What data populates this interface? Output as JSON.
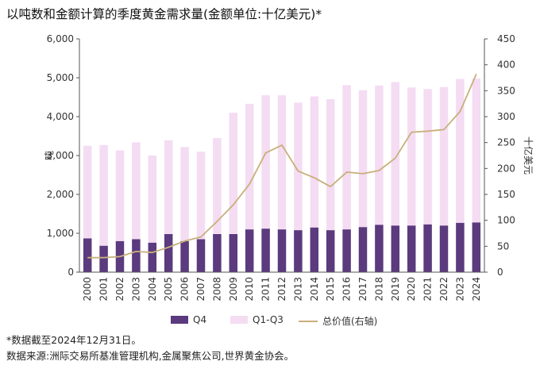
{
  "title": "以吨数和金额计算的季度黄金需求量(金额单位:十亿美元)*",
  "footnote": "*数据截至2024年12月31日。",
  "source": "数据来源:洲际交易所基准管理机构,金属聚焦公司,世界黄金协会。",
  "colors": {
    "q4": "#5b3a7e",
    "q1q3": "#f4dcf3",
    "total": "#c8b07a"
  },
  "chart_data": {
    "type": "bar",
    "stacked": true,
    "categories": [
      "2000",
      "2001",
      "2002",
      "2003",
      "2004",
      "2005",
      "2006",
      "2007",
      "2008",
      "2009",
      "2010",
      "2011",
      "2012",
      "2013",
      "2014",
      "2015",
      "2016",
      "2017",
      "2018",
      "2019",
      "2020",
      "2021",
      "2022",
      "2023",
      "2024"
    ],
    "ylabel": "吨",
    "y2label": "十亿美元",
    "ylim": [
      0,
      6000
    ],
    "y2lim": [
      0,
      450
    ],
    "yticks": [
      "0",
      "1,000",
      "2,000",
      "3,000",
      "4,000",
      "5,000",
      "6,000"
    ],
    "y2ticks": [
      "0",
      "50",
      "100",
      "150",
      "200",
      "250",
      "300",
      "350",
      "400",
      "450"
    ],
    "series": [
      {
        "name": "Q4",
        "values": [
          870,
          680,
          800,
          850,
          760,
          980,
          800,
          850,
          980,
          980,
          1100,
          1120,
          1100,
          1080,
          1150,
          1080,
          1100,
          1160,
          1220,
          1200,
          1200,
          1230,
          1200,
          1270,
          1280
        ]
      },
      {
        "name": "Q1-Q3",
        "values": [
          2380,
          2590,
          2330,
          2490,
          2240,
          2410,
          2420,
          2250,
          2470,
          3120,
          3230,
          3430,
          3450,
          3280,
          3370,
          3370,
          3710,
          3520,
          3580,
          3690,
          3550,
          3480,
          3560,
          3700,
          3700
        ]
      },
      {
        "name": "总价值(右轴)",
        "axis": "right",
        "values": [
          28,
          28,
          30,
          40,
          38,
          48,
          60,
          68,
          98,
          130,
          170,
          230,
          245,
          195,
          182,
          165,
          193,
          190,
          196,
          220,
          270,
          272,
          275,
          310,
          382
        ]
      }
    ],
    "legend_position": "bottom",
    "grid": false
  }
}
